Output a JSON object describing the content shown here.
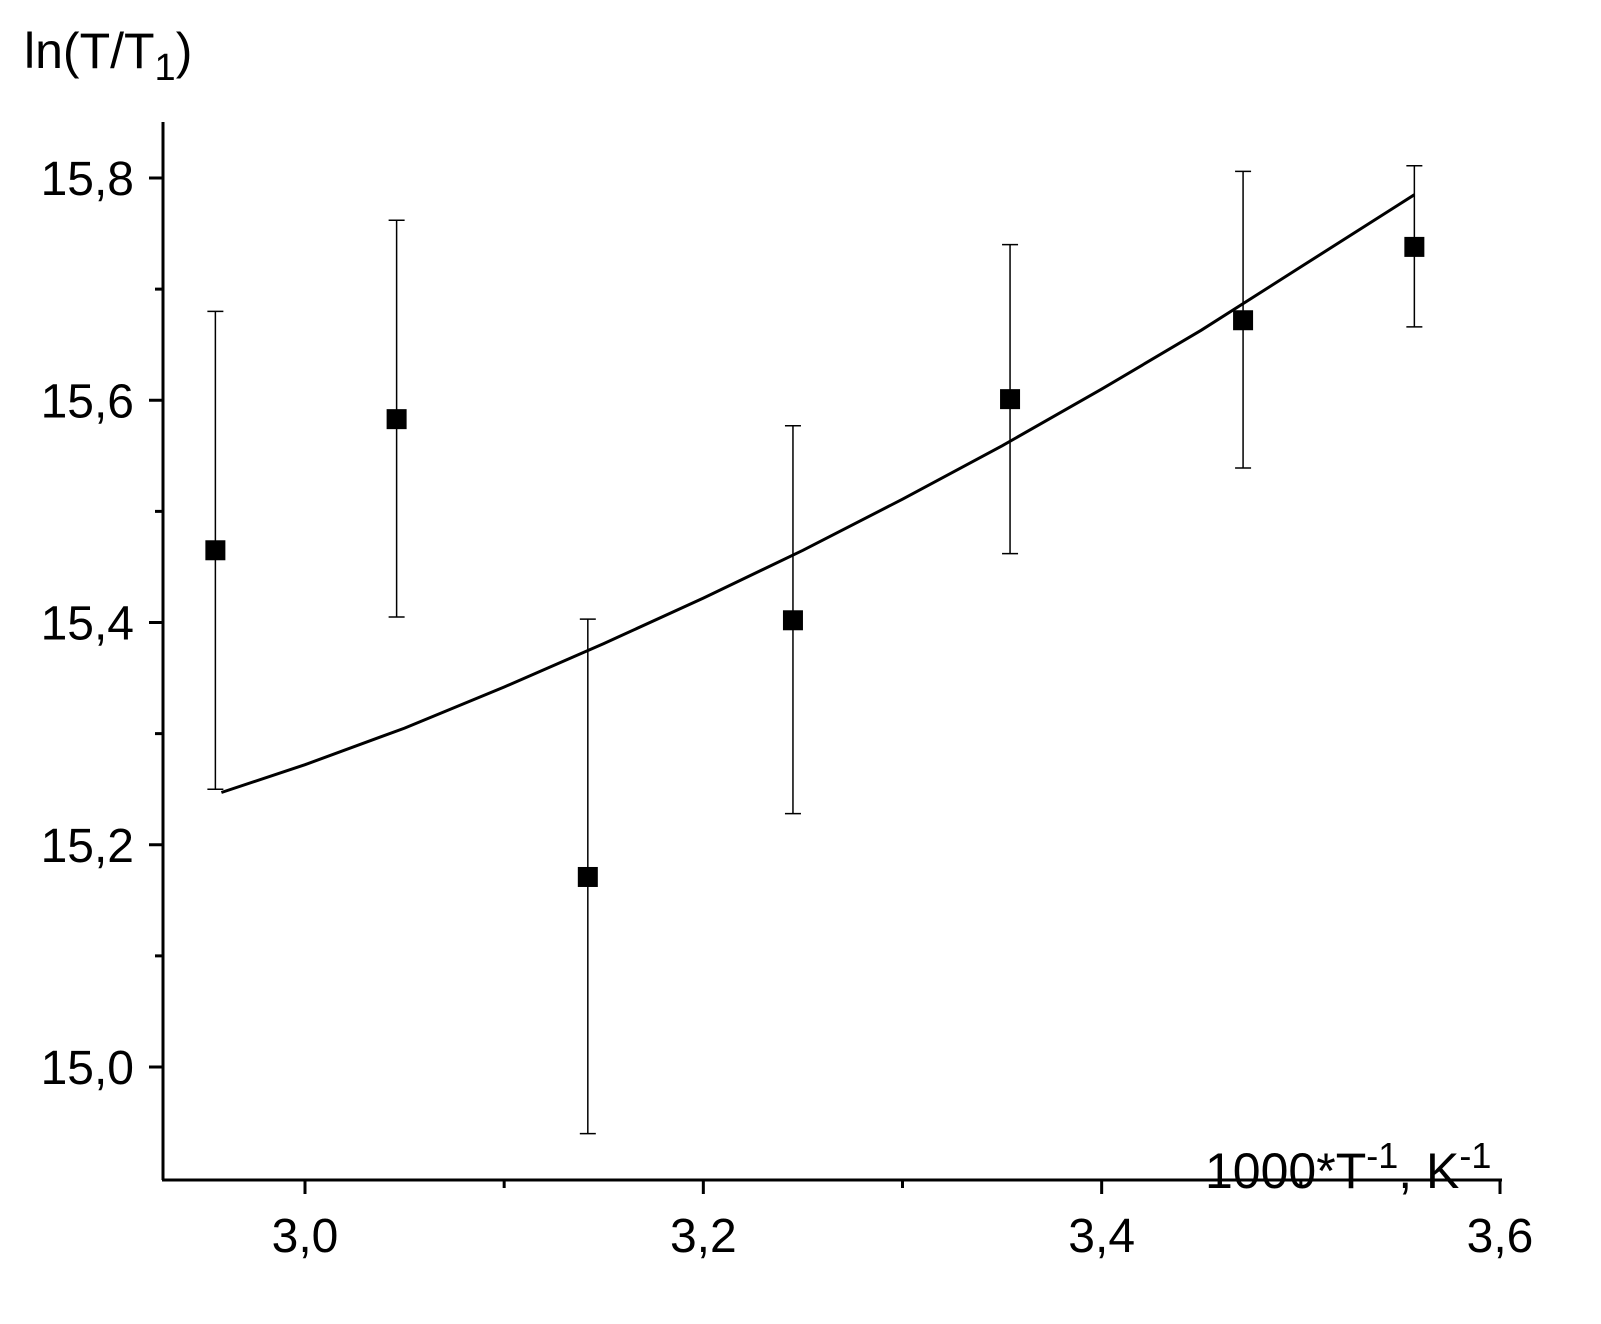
{
  "chart_data": {
    "type": "scatter",
    "ylabel": {
      "main": "ln(T/T",
      "sub": "1",
      "close": ")"
    },
    "xlabel": {
      "p1": "1000*T",
      "sup1": "-1",
      "p2": ", K",
      "sup2": "-1"
    },
    "xlim": [
      2.92,
      3.6
    ],
    "ylim": [
      14.9,
      15.85
    ],
    "x_ticks": [
      3.0,
      3.2,
      3.4,
      3.6
    ],
    "x_tick_labels": [
      "3,0",
      "3,2",
      "3,4",
      "3,6"
    ],
    "x_minor_ticks": [
      3.1,
      3.3,
      3.5
    ],
    "y_ticks": [
      15.0,
      15.2,
      15.4,
      15.6,
      15.8
    ],
    "y_tick_labels": [
      "15,0",
      "15,2",
      "15,4",
      "15,6",
      "15,8"
    ],
    "y_minor_ticks": [
      15.1,
      15.3,
      15.5,
      15.7
    ],
    "points": [
      {
        "x": 2.955,
        "y": 15.465,
        "err_low": 15.25,
        "err_high": 15.68
      },
      {
        "x": 3.046,
        "y": 15.583,
        "err_low": 15.405,
        "err_high": 15.762
      },
      {
        "x": 3.142,
        "y": 15.171,
        "err_low": 14.94,
        "err_high": 15.403
      },
      {
        "x": 3.245,
        "y": 15.402,
        "err_low": 15.228,
        "err_high": 15.577
      },
      {
        "x": 3.354,
        "y": 15.601,
        "err_low": 15.462,
        "err_high": 15.74
      },
      {
        "x": 3.471,
        "y": 15.672,
        "err_low": 15.539,
        "err_high": 15.806
      },
      {
        "x": 3.557,
        "y": 15.738,
        "err_low": 15.666,
        "err_high": 15.811
      }
    ],
    "fit_curve": {
      "x": [
        2.958,
        3.0,
        3.05,
        3.1,
        3.15,
        3.2,
        3.25,
        3.3,
        3.35,
        3.4,
        3.45,
        3.5,
        3.557
      ],
      "y": [
        15.247,
        15.272,
        15.305,
        15.342,
        15.381,
        15.422,
        15.465,
        15.511,
        15.559,
        15.61,
        15.663,
        15.72,
        15.785
      ]
    },
    "grid": false,
    "marker": "filled-square",
    "color": "#000000"
  }
}
